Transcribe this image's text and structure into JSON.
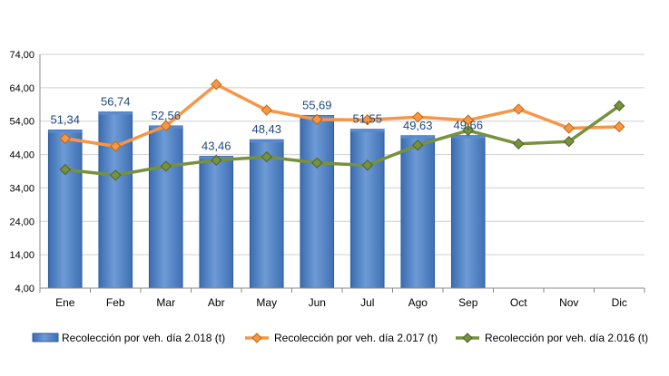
{
  "chart_data": {
    "type": "bar",
    "categories": [
      "Ene",
      "Feb",
      "Mar",
      "Abr",
      "May",
      "Jun",
      "Jul",
      "Ago",
      "Sep",
      "Oct",
      "Nov",
      "Dic"
    ],
    "ylim": [
      4,
      74
    ],
    "yticks": [
      4,
      14,
      24,
      34,
      44,
      54,
      64,
      74
    ],
    "ytick_labels": [
      "4,00",
      "14,00",
      "24,00",
      "34,00",
      "44,00",
      "54,00",
      "64,00",
      "74,00"
    ],
    "grid": "horizontal",
    "legend_position": "bottom",
    "series": [
      {
        "name": "Recolección por veh. día 2.018 (t)",
        "type": "bar",
        "color": "#4F81BD",
        "values": [
          51.34,
          56.74,
          52.56,
          43.46,
          48.43,
          55.69,
          51.55,
          49.63,
          49.66,
          null,
          null,
          null
        ],
        "data_labels": [
          "51,34",
          "56,74",
          "52,56",
          "43,46",
          "48,43",
          "55,69",
          "51,55",
          "49,63",
          "49,66",
          "",
          "",
          ""
        ]
      },
      {
        "name": "Recolección por veh. día 2.017 (t)",
        "type": "line",
        "color": "#F79646",
        "marker": "diamond",
        "values": [
          48.8,
          46.5,
          52.6,
          65.0,
          57.3,
          54.5,
          54.4,
          55.2,
          54.3,
          57.6,
          51.9,
          52.3
        ]
      },
      {
        "name": "Recolección por veh. día 2.016 (t)",
        "type": "line",
        "color": "#76923C",
        "marker": "diamond",
        "values": [
          39.5,
          37.8,
          40.5,
          42.3,
          43.3,
          41.5,
          40.8,
          46.8,
          51.2,
          47.2,
          47.9,
          58.6
        ]
      }
    ]
  }
}
